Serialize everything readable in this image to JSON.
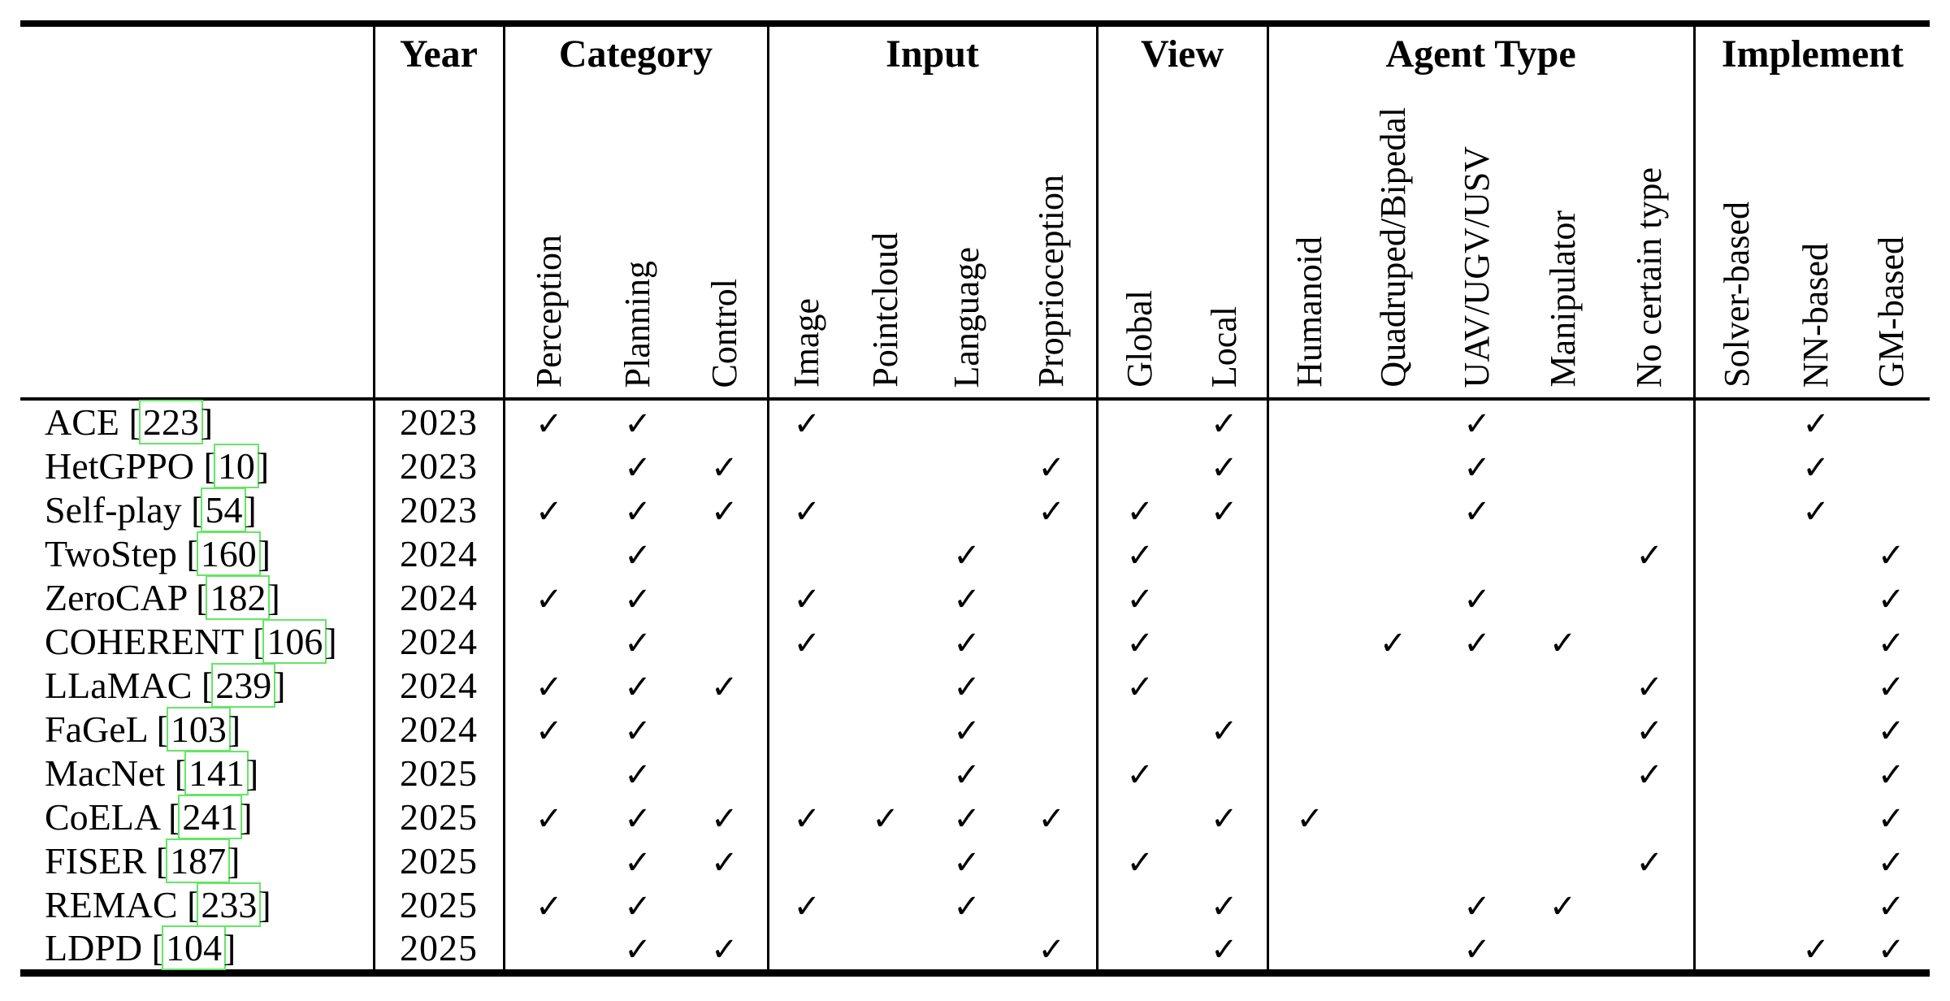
{
  "table": {
    "group_headers": [
      {
        "label": "Year"
      },
      {
        "label": "Category"
      },
      {
        "label": "Input"
      },
      {
        "label": "View"
      },
      {
        "label": "Agent Type"
      },
      {
        "label": "Implement"
      }
    ],
    "columns": [
      "Perception",
      "Planning",
      "Control",
      "Image",
      "Pointcloud",
      "Language",
      "Proprioception",
      "Global",
      "Local",
      "Humanoid",
      "Quadruped/Bipedal",
      "UAV/UGV/USV",
      "Manipulator",
      "No certain type",
      "Solver-based",
      "NN-based",
      "GM-based"
    ],
    "check_glyph": "✓",
    "colors": {
      "citation_box": "#64e664",
      "text": "#000000",
      "background": "#ffffff"
    },
    "rows": [
      {
        "method": "ACE",
        "citation": "223",
        "year": "2023",
        "checks": [
          1,
          1,
          0,
          1,
          0,
          0,
          0,
          0,
          1,
          0,
          0,
          1,
          0,
          0,
          0,
          1,
          0
        ]
      },
      {
        "method": "HetGPPO",
        "citation": "10",
        "year": "2023",
        "checks": [
          0,
          1,
          1,
          0,
          0,
          0,
          1,
          0,
          1,
          0,
          0,
          1,
          0,
          0,
          0,
          1,
          0
        ]
      },
      {
        "method": "Self-play",
        "citation": "54",
        "year": "2023",
        "checks": [
          1,
          1,
          1,
          1,
          0,
          0,
          1,
          1,
          1,
          0,
          0,
          1,
          0,
          0,
          0,
          1,
          0
        ]
      },
      {
        "method": "TwoStep",
        "citation": "160",
        "year": "2024",
        "checks": [
          0,
          1,
          0,
          0,
          0,
          1,
          0,
          1,
          0,
          0,
          0,
          0,
          0,
          1,
          0,
          0,
          1
        ]
      },
      {
        "method": "ZeroCAP",
        "citation": "182",
        "year": "2024",
        "checks": [
          1,
          1,
          0,
          1,
          0,
          1,
          0,
          1,
          0,
          0,
          0,
          1,
          0,
          0,
          0,
          0,
          1
        ]
      },
      {
        "method": "COHERENT",
        "citation": "106",
        "year": "2024",
        "checks": [
          0,
          1,
          0,
          1,
          0,
          1,
          0,
          1,
          0,
          0,
          1,
          1,
          1,
          0,
          0,
          0,
          1
        ]
      },
      {
        "method": "LLaMAC",
        "citation": "239",
        "year": "2024",
        "checks": [
          1,
          1,
          1,
          0,
          0,
          1,
          0,
          1,
          0,
          0,
          0,
          0,
          0,
          1,
          0,
          0,
          1
        ]
      },
      {
        "method": "FaGeL",
        "citation": "103",
        "year": "2024",
        "checks": [
          1,
          1,
          0,
          0,
          0,
          1,
          0,
          0,
          1,
          0,
          0,
          0,
          0,
          1,
          0,
          0,
          1
        ]
      },
      {
        "method": "MacNet",
        "citation": "141",
        "year": "2025",
        "checks": [
          0,
          1,
          0,
          0,
          0,
          1,
          0,
          1,
          0,
          0,
          0,
          0,
          0,
          1,
          0,
          0,
          1
        ]
      },
      {
        "method": "CoELA",
        "citation": "241",
        "year": "2025",
        "checks": [
          1,
          1,
          1,
          1,
          1,
          1,
          1,
          0,
          1,
          1,
          0,
          0,
          0,
          0,
          0,
          0,
          1
        ]
      },
      {
        "method": "FISER",
        "citation": "187",
        "year": "2025",
        "checks": [
          0,
          1,
          1,
          0,
          0,
          1,
          0,
          1,
          0,
          0,
          0,
          0,
          0,
          1,
          0,
          0,
          1
        ]
      },
      {
        "method": "REMAC",
        "citation": "233",
        "year": "2025",
        "checks": [
          1,
          1,
          0,
          1,
          0,
          1,
          0,
          0,
          1,
          0,
          0,
          1,
          1,
          0,
          0,
          0,
          1
        ]
      },
      {
        "method": "LDPD",
        "citation": "104",
        "year": "2025",
        "checks": [
          0,
          1,
          1,
          0,
          0,
          0,
          1,
          0,
          1,
          0,
          0,
          1,
          0,
          0,
          0,
          1,
          1
        ]
      }
    ]
  }
}
